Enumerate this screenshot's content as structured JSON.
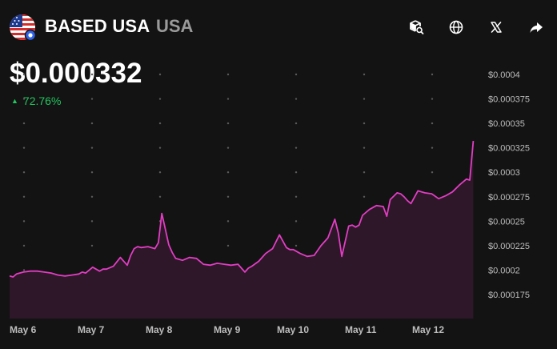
{
  "header": {
    "name": "BASED USA",
    "symbol": "USA",
    "icons": [
      "cube-search-icon",
      "globe-icon",
      "x-icon",
      "share-icon"
    ]
  },
  "price": "$0.000332",
  "change": "72.76%",
  "colors": {
    "background": "#131313",
    "line": "#e23dc4",
    "fill": "#2e1729",
    "up": "#22c55e"
  },
  "chart_data": {
    "type": "area",
    "grid": "dotted",
    "y_tick_labels": [
      "$0.0004",
      "$0.000375",
      "$0.00035",
      "$0.000325",
      "$0.0003",
      "$0.000275",
      "$0.00025",
      "$0.000225",
      "$0.0002",
      "$0.000175"
    ],
    "y_ticks": [
      0.0004,
      0.000375,
      0.00035,
      0.000325,
      0.0003,
      0.000275,
      0.00025,
      0.000225,
      0.0002,
      0.000175
    ],
    "x_tick_labels": [
      "May 6",
      "May 7",
      "May 8",
      "May 9",
      "May 10",
      "May 11",
      "May 12"
    ],
    "x_ticks": [
      0,
      1,
      2,
      3,
      4,
      5,
      6
    ],
    "xlim": [
      0,
      6.8
    ],
    "ylim": [
      0.000175,
      0.0004
    ],
    "x": [
      0,
      0.05,
      0.1,
      0.2,
      0.3,
      0.4,
      0.5,
      0.6,
      0.7,
      0.8,
      0.9,
      1.0,
      1.05,
      1.1,
      1.2,
      1.3,
      1.35,
      1.4,
      1.5,
      1.6,
      1.7,
      1.75,
      1.8,
      1.85,
      1.9,
      2.0,
      2.1,
      2.15,
      2.2,
      2.3,
      2.35,
      2.4,
      2.5,
      2.6,
      2.7,
      2.8,
      2.9,
      3.0,
      3.1,
      3.2,
      3.3,
      3.4,
      3.45,
      3.5,
      3.6,
      3.7,
      3.8,
      3.9,
      4.0,
      4.05,
      4.1,
      4.2,
      4.3,
      4.4,
      4.5,
      4.6,
      4.7,
      4.75,
      4.8,
      4.9,
      4.95,
      5.0,
      5.05,
      5.1,
      5.2,
      5.3,
      5.4,
      5.45,
      5.5,
      5.6,
      5.65,
      5.7,
      5.75,
      5.8,
      5.9,
      6.0,
      6.1,
      6.2,
      6.3,
      6.4,
      6.5,
      6.6,
      6.65,
      6.7
    ],
    "values": [
      0.000194,
      0.000193,
      0.000196,
      0.000198,
      0.000199,
      0.000199,
      0.000198,
      0.000197,
      0.000195,
      0.000194,
      0.000195,
      0.000196,
      0.000198,
      0.000197,
      0.000203,
      0.000199,
      0.000201,
      0.000201,
      0.000204,
      0.000213,
      0.000205,
      0.000215,
      0.000222,
      0.000224,
      0.000223,
      0.000224,
      0.000222,
      0.000228,
      0.000258,
      0.000226,
      0.000218,
      0.000212,
      0.00021,
      0.000213,
      0.000212,
      0.000206,
      0.000205,
      0.000207,
      0.000206,
      0.000205,
      0.000206,
      0.000198,
      0.000202,
      0.000204,
      0.000209,
      0.000217,
      0.000222,
      0.000236,
      0.000223,
      0.000221,
      0.000221,
      0.000217,
      0.000214,
      0.000215,
      0.000225,
      0.000233,
      0.000252,
      0.000238,
      0.000214,
      0.000245,
      0.000246,
      0.000244,
      0.000246,
      0.000256,
      0.000262,
      0.000266,
      0.000265,
      0.000255,
      0.000272,
      0.000279,
      0.000278,
      0.000275,
      0.000271,
      0.000268,
      0.000281,
      0.000279,
      0.000278,
      0.000273,
      0.000276,
      0.00028,
      0.000287,
      0.000293,
      0.000292,
      0.000332
    ]
  }
}
